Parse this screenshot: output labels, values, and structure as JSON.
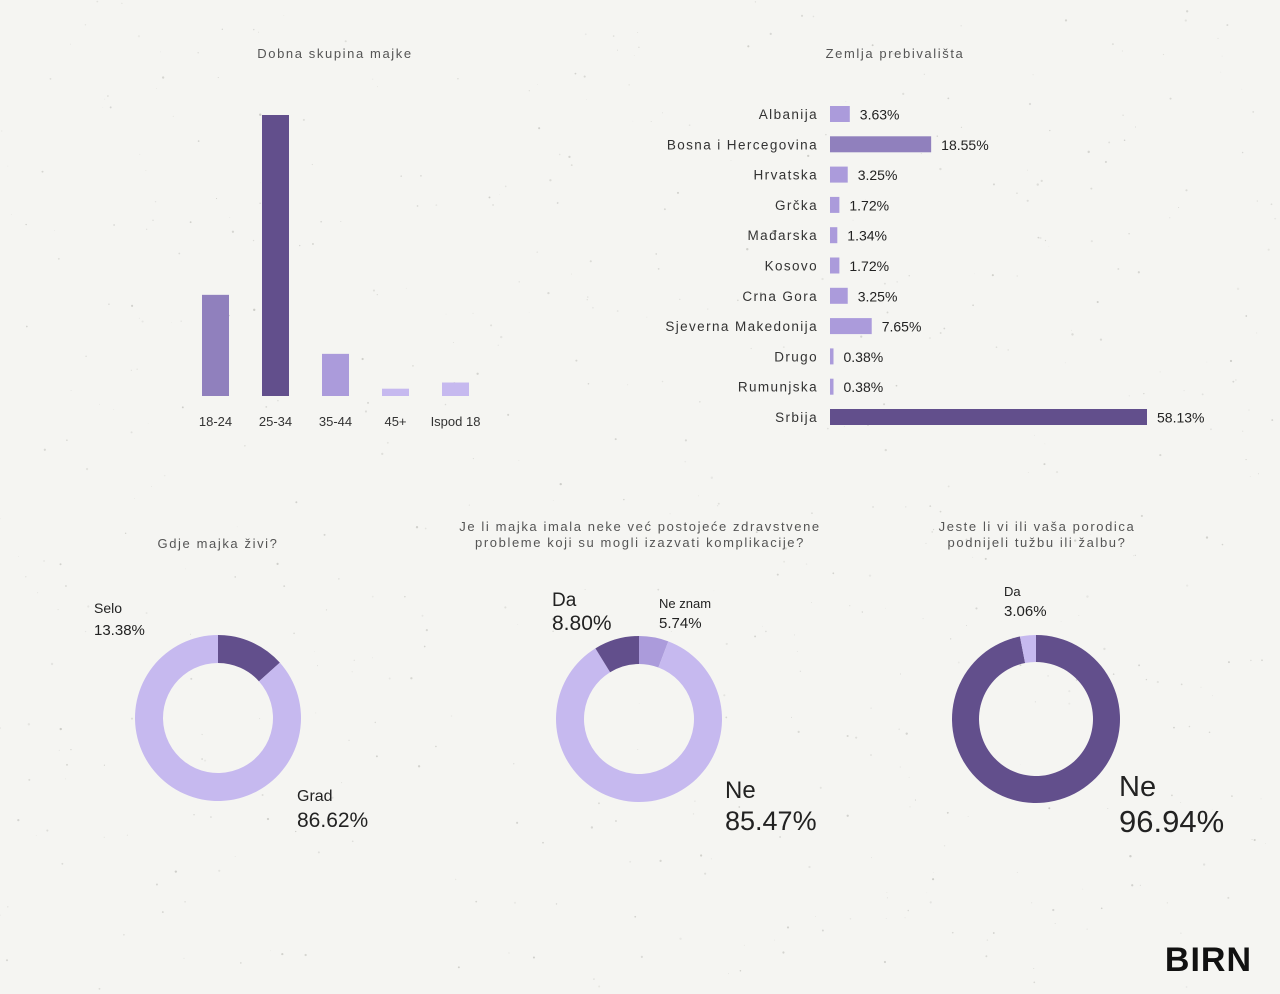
{
  "colors": {
    "dark": "#624f8c",
    "mid": "#9080bd",
    "light": "#ab9bdb",
    "pale": "#c6b9ef",
    "text": "#222222"
  },
  "chart_data": [
    {
      "type": "bar",
      "title": "Dobna skupina majke",
      "categories": [
        "18-24",
        "25-34",
        "35-44",
        "45+",
        "Ispod 18"
      ],
      "values": [
        18,
        50,
        7.5,
        1.3,
        2.4
      ],
      "ylim": [
        0,
        50
      ],
      "colors": [
        "#9080bd",
        "#624f8c",
        "#ab9bdb",
        "#c6b9ef",
        "#c6b9ef"
      ]
    },
    {
      "type": "bar",
      "orientation": "horizontal",
      "title": "Zemlja prebivališta",
      "categories": [
        "Albanija",
        "Bosna i Hercegovina",
        "Hrvatska",
        "Grčka",
        "Mađarska",
        "Kosovo",
        "Crna Gora",
        "Sjeverna Makedonija",
        "Drugo",
        "Rumunjska",
        "Srbija"
      ],
      "values": [
        3.63,
        18.55,
        3.25,
        1.72,
        1.34,
        1.72,
        3.25,
        7.65,
        0.38,
        0.38,
        58.13
      ],
      "labels": [
        "3.63%",
        "18.55%",
        "3.25%",
        "1.72%",
        "1.34%",
        "1.72%",
        "3.25%",
        "7.65%",
        "0.38%",
        "0.38%",
        "58.13%"
      ],
      "colors": [
        "#ab9bdb",
        "#9080bd",
        "#ab9bdb",
        "#ab9bdb",
        "#ab9bdb",
        "#ab9bdb",
        "#ab9bdb",
        "#ab9bdb",
        "#ab9bdb",
        "#ab9bdb",
        "#624f8c"
      ]
    },
    {
      "type": "pie",
      "donut": true,
      "title": "Gdje majka živi?",
      "slices": [
        {
          "name": "Selo",
          "value": 13.38,
          "label": "13.38%",
          "color": "#624f8c"
        },
        {
          "name": "Grad",
          "value": 86.62,
          "label": "86.62%",
          "color": "#c6b9ef"
        }
      ]
    },
    {
      "type": "pie",
      "donut": true,
      "title": "Je li majka imala neke već postojeće zdravstvene\nprobleme koji su mogli izazvati komplikacije?",
      "slices": [
        {
          "name": "Ne znam",
          "value": 5.74,
          "label": "5.74%",
          "color": "#ab9bdb"
        },
        {
          "name": "Ne",
          "value": 85.47,
          "label": "85.47%",
          "color": "#c6b9ef"
        },
        {
          "name": "Da",
          "value": 8.8,
          "label": "8.80%",
          "color": "#624f8c"
        }
      ]
    },
    {
      "type": "pie",
      "donut": true,
      "title": "Jeste li vi ili vaša porodica\npodnijeli tužbu ili žalbu?",
      "slices": [
        {
          "name": "Ne",
          "value": 96.94,
          "label": "96.94%",
          "color": "#624f8c"
        },
        {
          "name": "Da",
          "value": 3.06,
          "label": "3.06%",
          "color": "#c6b9ef"
        }
      ]
    }
  ],
  "logo": "BIRN"
}
